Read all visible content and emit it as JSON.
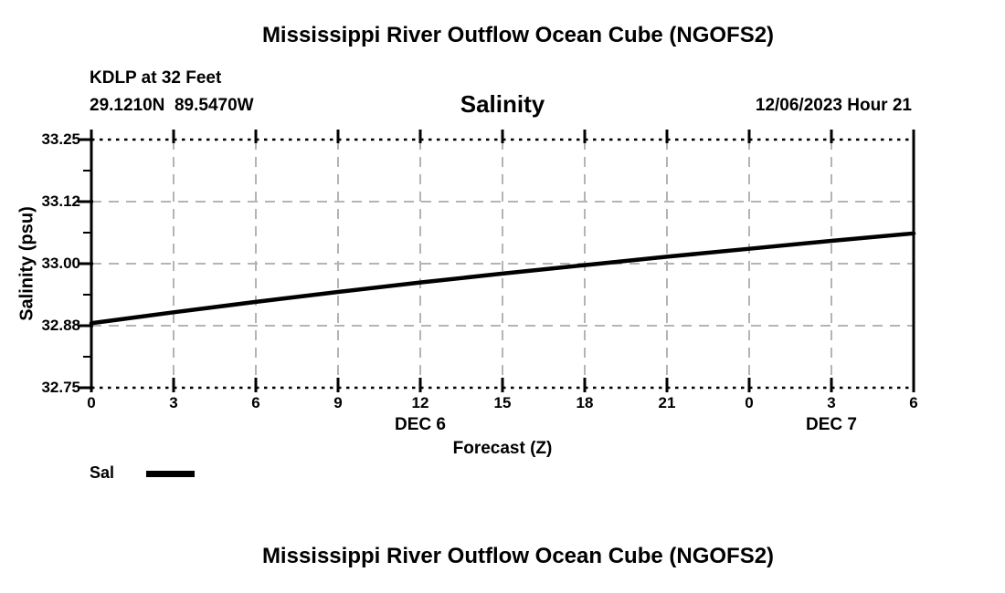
{
  "figure": {
    "title_top": "Mississippi River Outflow Ocean Cube (NGOFS2)",
    "title_bottom": "Mississippi River Outflow Ocean Cube (NGOFS2)",
    "station": {
      "line1": "KDLP at 32 Feet",
      "line2": "29.1210N  89.5470W"
    },
    "datetime": "12/06/2023 Hour 21",
    "colors": {
      "line": "#000000",
      "grid": "#b4b4b4",
      "axis": "#000000",
      "text": "#000000",
      "background": "#ffffff"
    }
  },
  "chart_data": {
    "type": "line",
    "title": "Salinity",
    "xlabel": "Forecast (Z)",
    "ylabel": "Salinity (psu)",
    "xlim": [
      0,
      30
    ],
    "ylim": [
      32.75,
      33.25
    ],
    "x_hours": [
      0,
      3,
      6,
      9,
      12,
      15,
      18,
      21,
      24,
      27,
      30
    ],
    "x_tick_labels": [
      "0",
      "3",
      "6",
      "9",
      "12",
      "15",
      "18",
      "21",
      "0",
      "3",
      "6"
    ],
    "x_day_labels": [
      {
        "label": "DEC 6",
        "hour": 12
      },
      {
        "label": "DEC 7",
        "hour": 27
      }
    ],
    "y_ticks": [
      {
        "value": 32.75,
        "label": "32.75"
      },
      {
        "value": 32.875,
        "label": "32.88"
      },
      {
        "value": 33.0,
        "label": "33.00"
      },
      {
        "value": 33.125,
        "label": "33.12"
      },
      {
        "value": 33.25,
        "label": "33.25"
      }
    ],
    "y_minor_ticks": [
      32.8125,
      32.9375,
      33.0625,
      33.1875
    ],
    "grid": "dashed-gray-at-major-ticks",
    "legend": {
      "label": "Sal",
      "position": "bottom-left"
    },
    "series": [
      {
        "name": "Sal",
        "x": [
          0,
          3,
          6,
          9,
          12,
          15,
          18,
          21,
          24,
          27,
          30
        ],
        "values": [
          32.88,
          32.902,
          32.923,
          32.943,
          32.962,
          32.98,
          32.997,
          33.014,
          33.03,
          33.046,
          33.061
        ]
      }
    ]
  }
}
